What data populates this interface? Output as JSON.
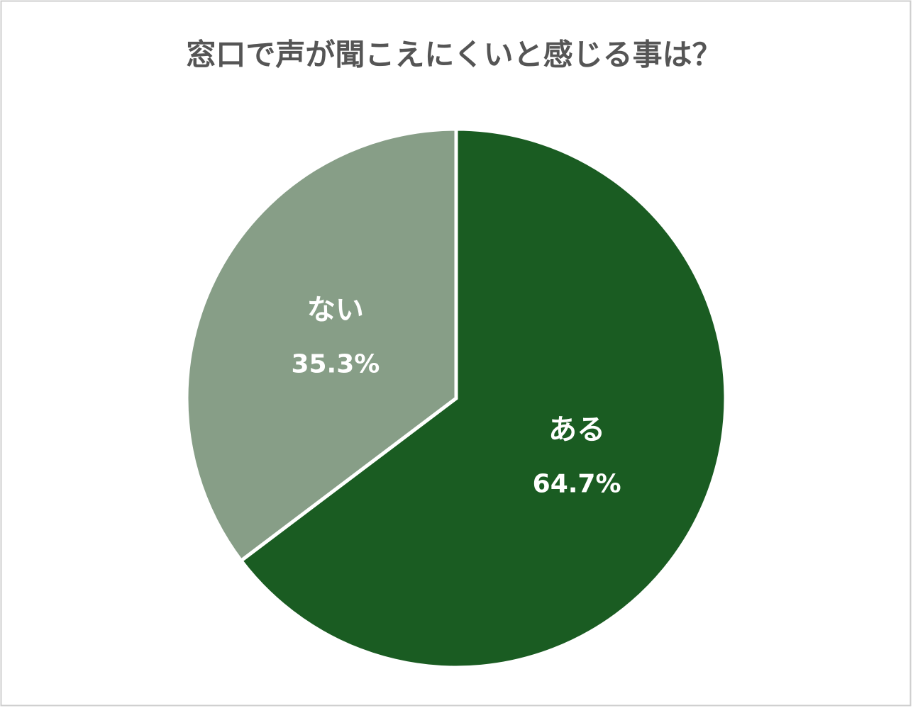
{
  "chart_data": {
    "type": "pie",
    "title": "窓口で声が聞こえにくいと感じる事は？",
    "categories": [
      "ある",
      "ない"
    ],
    "values": [
      64.7,
      35.3
    ],
    "value_labels": [
      "64.7%",
      "35.3%"
    ],
    "colors": [
      "#1a5c22",
      "#879e87"
    ]
  }
}
